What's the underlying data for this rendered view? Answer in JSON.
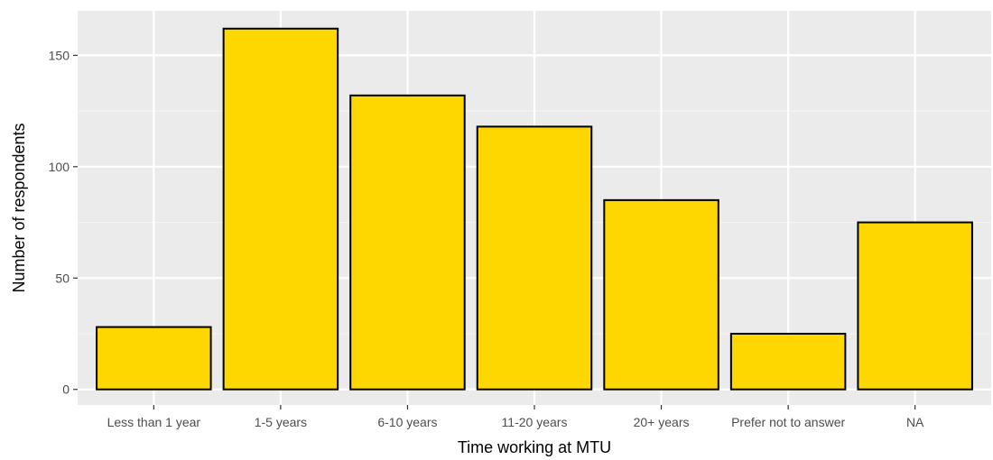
{
  "chart_data": {
    "type": "bar",
    "title": "",
    "xlabel": "Time working at MTU",
    "ylabel": "Number of respondents",
    "categories": [
      "Less than 1 year",
      "1-5 years",
      "6-10 years",
      "11-20 years",
      "20+ years",
      "Prefer not to answer",
      "NA"
    ],
    "values": [
      28,
      162,
      132,
      118,
      85,
      25,
      75
    ],
    "ylim": [
      -7,
      170
    ],
    "yticks": [
      0,
      50,
      100,
      150
    ],
    "ytick_labels": [
      "0",
      "50",
      "100",
      "150"
    ],
    "grid": true,
    "legend": "none"
  },
  "colors": {
    "bar_fill": "#FFD700",
    "bar_stroke": "#000000",
    "panel_background": "#EBEBEB",
    "grid_major": "#FFFFFF",
    "grid_minor": "#F5F5F5",
    "tick_text": "#4D4D4D",
    "tick_mark": "#333333"
  }
}
